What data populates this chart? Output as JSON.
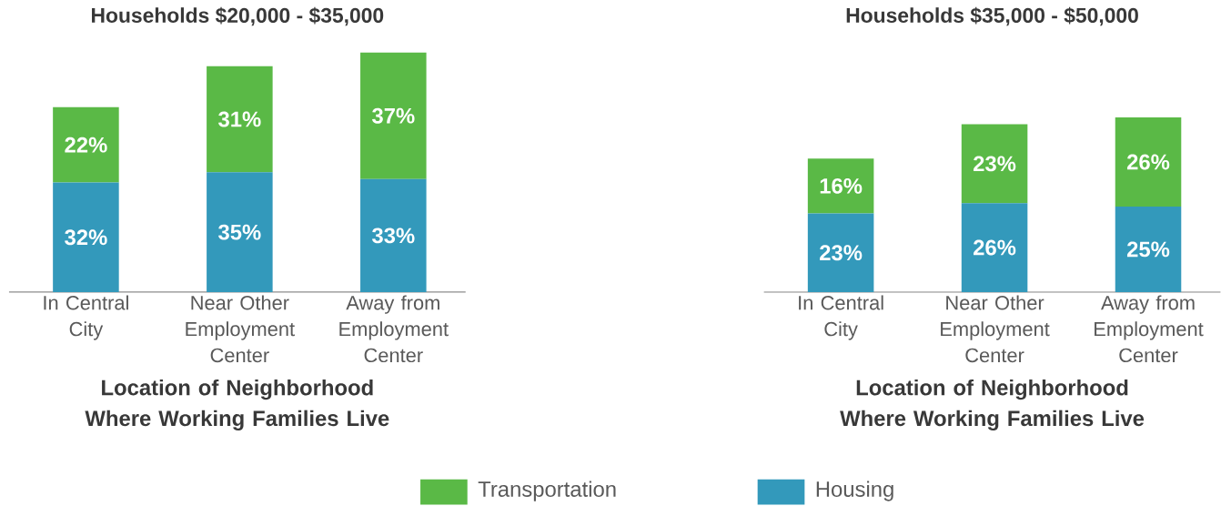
{
  "chart_data": [
    {
      "type": "bar",
      "stacked": true,
      "title": "Households $20,000 - $35,000",
      "xlabel": "Location of Neighborhood Where Working Families Live",
      "categories": [
        "In Central City",
        "Near Other Employment Center",
        "Away from Employment Center"
      ],
      "legend": "bottom",
      "series": [
        {
          "name": "Housing",
          "color": "#3399bb",
          "values": [
            32,
            35,
            33
          ],
          "value_labels": [
            "32%",
            "35%",
            "33%"
          ]
        },
        {
          "name": "Transportation",
          "color": "#5ab946",
          "values": [
            22,
            31,
            37
          ],
          "value_labels": [
            "22%",
            "31%",
            "37%"
          ]
        }
      ]
    },
    {
      "type": "bar",
      "stacked": true,
      "title": "Households $35,000 - $50,000",
      "xlabel": "Location of Neighborhood Where Working Families Live",
      "categories": [
        "In Central City",
        "Near Other Employment Center",
        "Away from Employment Center"
      ],
      "series": [
        {
          "color": "#3399bb",
          "values": [
            23,
            26,
            25
          ],
          "value_labels": [
            "23%",
            "26%",
            "25%"
          ]
        },
        {
          "color": "#5ab946",
          "values": [
            16,
            23,
            26
          ],
          "value_labels": [
            "16%",
            "23%",
            "26%"
          ]
        }
      ]
    }
  ]
}
